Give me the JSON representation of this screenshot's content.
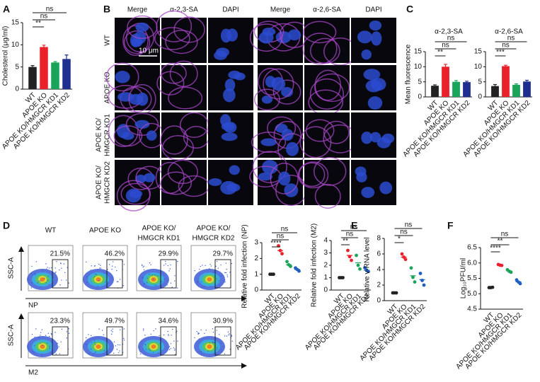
{
  "figure": {
    "panel_labels": [
      "A",
      "B",
      "C",
      "D",
      "E",
      "F"
    ],
    "microscopy": {
      "columns": [
        "Merge",
        "α-2,3-SA",
        "DAPI",
        "Merge",
        "α-2,6-SA",
        "DAPI"
      ],
      "rows": [
        [
          "WT"
        ],
        [
          "APOE KO"
        ],
        [
          "APOE KO/",
          "HMGCR KD1"
        ],
        [
          "APOE KO/",
          "HMGCR KD2"
        ]
      ],
      "scale_bar": "10 μm"
    },
    "flow": {
      "columns": [
        [
          "WT"
        ],
        [
          "APOE KO"
        ],
        [
          "APOE KO/",
          "HMGCR KD1"
        ],
        [
          "APOE KO/",
          "HMGCR KD2"
        ]
      ],
      "y_label": "SSC-A",
      "rows": [
        {
          "x_label": "NP",
          "gates": [
            "21.5%",
            "46.2%",
            "29.9%",
            "29.7%"
          ]
        },
        {
          "x_label": "M2",
          "gates": [
            "23.3%",
            "49.7%",
            "34.6%",
            "30.9%"
          ]
        }
      ]
    }
  },
  "chart_data": [
    {
      "type": "bar",
      "ylabel": "Cholesterol (μg/ml)",
      "categories": [
        "WT",
        "APOE KO",
        "APOE KO/HMGCR KD1",
        "APOE KO/HMGCR KD2"
      ],
      "values": [
        5.0,
        9.5,
        6.0,
        6.8
      ],
      "errors": [
        0.3,
        0.4,
        0.2,
        0.9
      ],
      "colors": [
        "#222222",
        "#e8212a",
        "#1aa45a",
        "#1f2f8f"
      ],
      "ylim": [
        0,
        15
      ],
      "yticks": [
        0,
        5,
        10,
        15
      ],
      "annotations": [
        "**",
        "ns",
        "ns"
      ]
    },
    {
      "type": "bar",
      "title": "α-2,3-SA",
      "ylabel": "Mean fluorescence",
      "categories": [
        "WT",
        "APOE KO",
        "APOE KO/HMGCR KD1",
        "APOE KO/HMGCR KD2"
      ],
      "values": [
        3.7,
        10.0,
        5.0,
        4.9
      ],
      "errors": [
        0.3,
        0.8,
        0.4,
        0.3
      ],
      "colors": [
        "#222222",
        "#e8212a",
        "#1aa45a",
        "#1f2f8f"
      ],
      "ylim": [
        0,
        15
      ],
      "yticks": [
        0,
        5,
        10,
        15
      ],
      "annotations": [
        "**",
        "ns",
        "ns"
      ]
    },
    {
      "type": "bar",
      "title": "α-2,6-SA",
      "categories": [
        "WT",
        "APOE KO",
        "APOE KO/HMGCR KD1",
        "APOE KO/HMGCR KD2"
      ],
      "values": [
        3.6,
        10.2,
        4.0,
        5.1
      ],
      "errors": [
        0.5,
        0.3,
        0.3,
        0.4
      ],
      "colors": [
        "#222222",
        "#e8212a",
        "#1aa45a",
        "#1f2f8f"
      ],
      "ylim": [
        0,
        15
      ],
      "yticks": [
        0,
        5,
        10,
        15
      ],
      "annotations": [
        "***",
        "ns",
        "ns"
      ]
    },
    {
      "type": "dot",
      "ylabel": "Relative fold infection (NP)",
      "categories": [
        "WT",
        "APOE KO",
        "APOE KO/HMGCR KD1",
        "APOE KO/HMGCR KD2"
      ],
      "values": [
        [
          1,
          1,
          1
        ],
        [
          2.8,
          2.5,
          2.3
        ],
        [
          1.8,
          1.6,
          1.5
        ],
        [
          1.4,
          1.3,
          1.2
        ]
      ],
      "means": [
        1,
        2.5,
        1.6,
        1.3
      ],
      "colors": [
        "#222222",
        "#e8212a",
        "#1aa45a",
        "#1f5fbf"
      ],
      "ylim": [
        0,
        3
      ],
      "yticks": [
        0,
        1,
        2,
        3
      ],
      "annotations": [
        "****",
        "ns",
        "ns"
      ]
    },
    {
      "type": "dot",
      "ylabel": "Relative fold infection (M2)",
      "categories": [
        "WT",
        "APOE KO",
        "APOE KO/HMGCR KD1",
        "APOE KO/HMGCR KD2"
      ],
      "values": [
        [
          1,
          1,
          1
        ],
        [
          3.2,
          2.7,
          2.4
        ],
        [
          2.8,
          2.0,
          1.7
        ],
        [
          1.8,
          1.6,
          1.5
        ]
      ],
      "means": [
        1,
        2.8,
        2.2,
        1.6
      ],
      "colors": [
        "#222222",
        "#e8212a",
        "#1aa45a",
        "#1f5fbf"
      ],
      "ylim": [
        0,
        4
      ],
      "yticks": [
        0,
        1,
        2,
        3,
        4
      ],
      "annotations": [
        "**",
        "ns",
        "ns"
      ]
    },
    {
      "type": "dot",
      "ylabel": "Relative v-RNA level",
      "categories": [
        "WT",
        "APOE KO",
        "APOE KO/HMGCR KD1",
        "APOE KO/HMGCR KD2"
      ],
      "values": [
        [
          1,
          1,
          1
        ],
        [
          6.0,
          5.6,
          5.3
        ],
        [
          4.2,
          3.0,
          2.4
        ],
        [
          3.5,
          2.6,
          2.0
        ]
      ],
      "means": [
        1,
        5.6,
        3.2,
        2.7
      ],
      "colors": [
        "#222222",
        "#e8212a",
        "#1aa45a",
        "#1f5fbf"
      ],
      "ylim": [
        0,
        8
      ],
      "yticks": [
        0,
        2,
        4,
        6,
        8
      ],
      "annotations": [
        "*",
        "ns",
        "ns"
      ]
    },
    {
      "type": "dot",
      "ylabel": "Log₁₀PFU/ml",
      "categories": [
        "WT",
        "APOE KO",
        "APOE KO/HMGCR KD1",
        "APOE KO/HMGCR KD2"
      ],
      "values": [
        [
          5.2,
          5.2,
          5.21
        ],
        [
          5.95,
          5.93,
          5.92
        ],
        [
          5.78,
          5.73,
          5.7
        ],
        [
          5.45,
          5.38,
          5.33
        ]
      ],
      "means": [
        5.2,
        5.93,
        5.74,
        5.39
      ],
      "colors": [
        "#222222",
        "#e8212a",
        "#1aa45a",
        "#1f5fbf"
      ],
      "ylim": [
        4.5,
        6.5
      ],
      "yticks": [
        4.5,
        {
          "value": 5,
          "label": "5.0"
        },
        5.5,
        {
          "value": 6,
          "label": "6.0"
        },
        6.5
      ],
      "annotations": [
        "****",
        "**",
        "ns"
      ]
    }
  ]
}
